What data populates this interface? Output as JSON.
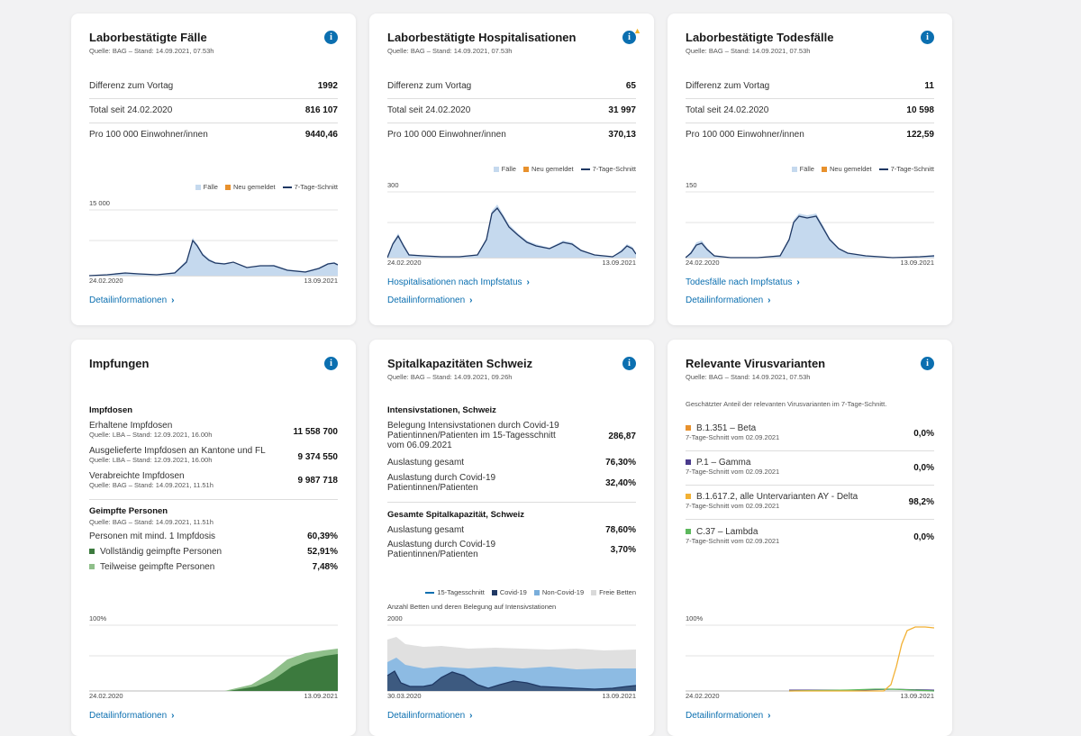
{
  "cases": {
    "title": "Laborbestätigte Fälle",
    "source": "Quelle: BAG – Stand: 14.09.2021, 07.53h",
    "rows": [
      {
        "label": "Differenz zum Vortag",
        "value": "1992"
      },
      {
        "label": "Total seit 24.02.2020",
        "value": "816 107"
      },
      {
        "label": "Pro 100 000 Einwohner/innen",
        "value": "9440,46"
      }
    ],
    "legend": {
      "bars": "Fälle",
      "new": "Neu gemeldet",
      "avg": "7-Tage-Schnitt"
    },
    "ymax": "15 000",
    "date_start": "24.02.2020",
    "date_end": "13.09.2021",
    "detail": "Detailinformationen"
  },
  "hosp": {
    "title": "Laborbestätigte Hospitalisationen",
    "source": "Quelle: BAG – Stand: 14.09.2021, 07.53h",
    "rows": [
      {
        "label": "Differenz zum Vortag",
        "value": "65"
      },
      {
        "label": "Total seit 24.02.2020",
        "value": "31 997"
      },
      {
        "label": "Pro 100 000 Einwohner/innen",
        "value": "370,13"
      }
    ],
    "legend": {
      "bars": "Fälle",
      "new": "Neu gemeldet",
      "avg": "7-Tage-Schnitt"
    },
    "ymax": "300",
    "date_start": "24.02.2020",
    "date_end": "13.09.2021",
    "link": "Hospitalisationen nach Impfstatus",
    "detail": "Detailinformationen"
  },
  "deaths": {
    "title": "Laborbestätigte Todesfälle",
    "source": "Quelle: BAG – Stand: 14.09.2021, 07.53h",
    "rows": [
      {
        "label": "Differenz zum Vortag",
        "value": "11"
      },
      {
        "label": "Total seit 24.02.2020",
        "value": "10 598"
      },
      {
        "label": "Pro 100 000 Einwohner/innen",
        "value": "122,59"
      }
    ],
    "legend": {
      "bars": "Fälle",
      "new": "Neu gemeldet",
      "avg": "7-Tage-Schnitt"
    },
    "ymax": "150",
    "date_start": "24.02.2020",
    "date_end": "13.09.2021",
    "link": "Todesfälle nach Impfstatus",
    "detail": "Detailinformationen"
  },
  "vacc": {
    "title": "Impfungen",
    "doses_heading": "Impfdosen",
    "doses": [
      {
        "label": "Erhaltene Impfdosen",
        "source": "Quelle: LBA – Stand: 12.09.2021, 16.00h",
        "value": "11 558 700"
      },
      {
        "label": "Ausgelieferte Impfdosen an Kantone und FL",
        "source": "Quelle: LBA – Stand: 12.09.2021, 16.00h",
        "value": "9 374 550"
      },
      {
        "label": "Verabreichte Impfdosen",
        "source": "Quelle: BAG – Stand: 14.09.2021, 11.51h",
        "value": "9 987 718"
      }
    ],
    "persons_heading": "Geimpfte Personen",
    "persons_source": "Quelle: BAG – Stand: 14.09.2021, 11.51h",
    "persons": [
      {
        "label": "Personen mit mind. 1 Impfdosis",
        "value": "60,39%"
      },
      {
        "label": "Vollständig geimpfte Personen",
        "value": "52,91%"
      },
      {
        "label": "Teilweise geimpfte Personen",
        "value": "7,48%"
      }
    ],
    "ymax": "100%",
    "date_start": "24.02.2020",
    "date_end": "13.09.2021",
    "detail": "Detailinformationen",
    "colors": {
      "full": "#3c7a3e",
      "partial": "#8fbf8a"
    }
  },
  "hospital": {
    "title": "Spitalkapazitäten Schweiz",
    "source": "Quelle: BAG – Stand: 14.09.2021, 09.26h",
    "icu_heading": "Intensivstationen, Schweiz",
    "icu": [
      {
        "label": "Belegung Intensivstationen durch Covid-19 Patientinnen/Patienten im 15-Tagesschnitt vom 06.09.2021",
        "value": "286,87"
      },
      {
        "label": "Auslastung gesamt",
        "value": "76,30%"
      },
      {
        "label": "Auslastung durch Covid-19 Patientinnen/Patienten",
        "value": "32,40%"
      }
    ],
    "total_heading": "Gesamte Spitalkapazität, Schweiz",
    "total": [
      {
        "label": "Auslastung gesamt",
        "value": "78,60%"
      },
      {
        "label": "Auslastung durch Covid-19 Patientinnen/Patienten",
        "value": "3,70%"
      }
    ],
    "legend": {
      "avg": "15-Tagesschnitt",
      "covid": "Covid-19",
      "noncovid": "Non-Covid-19",
      "free": "Freie Betten"
    },
    "chart_caption": "Anzahl Betten und deren Belegung auf Intensivstationen",
    "ymax": "2000",
    "date_start": "30.03.2020",
    "date_end": "13.09.2021",
    "detail": "Detailinformationen"
  },
  "variants": {
    "title": "Relevante Virusvarianten",
    "source": "Quelle: BAG – Stand: 14.09.2021, 07.53h",
    "intro": "Geschätzter Anteil der relevanten Virusvarianten im 7-Tage-Schnitt.",
    "items": [
      {
        "label": "B.1.351 – Beta",
        "sub": "7-Tage-Schnitt vom 02.09.2021",
        "value": "0,0%",
        "color": "#e8912d"
      },
      {
        "label": "P.1 – Gamma",
        "sub": "7-Tage-Schnitt vom 02.09.2021",
        "value": "0,0%",
        "color": "#4a3a8c"
      },
      {
        "label": "B.1.617.2, alle Untervarianten AY - Delta",
        "sub": "7-Tage-Schnitt vom 02.09.2021",
        "value": "98,2%",
        "color": "#f2b134"
      },
      {
        "label": "C.37 – Lambda",
        "sub": "7-Tage-Schnitt vom 02.09.2021",
        "value": "0,0%",
        "color": "#5cb85c"
      }
    ],
    "ymax": "100%",
    "date_start": "24.02.2020",
    "date_end": "13.09.2021",
    "detail": "Detailinformationen"
  },
  "colors": {
    "accent": "#0b6fb0",
    "bars": "#c5d9ee",
    "line": "#1f3864",
    "new": "#e8912d"
  }
}
